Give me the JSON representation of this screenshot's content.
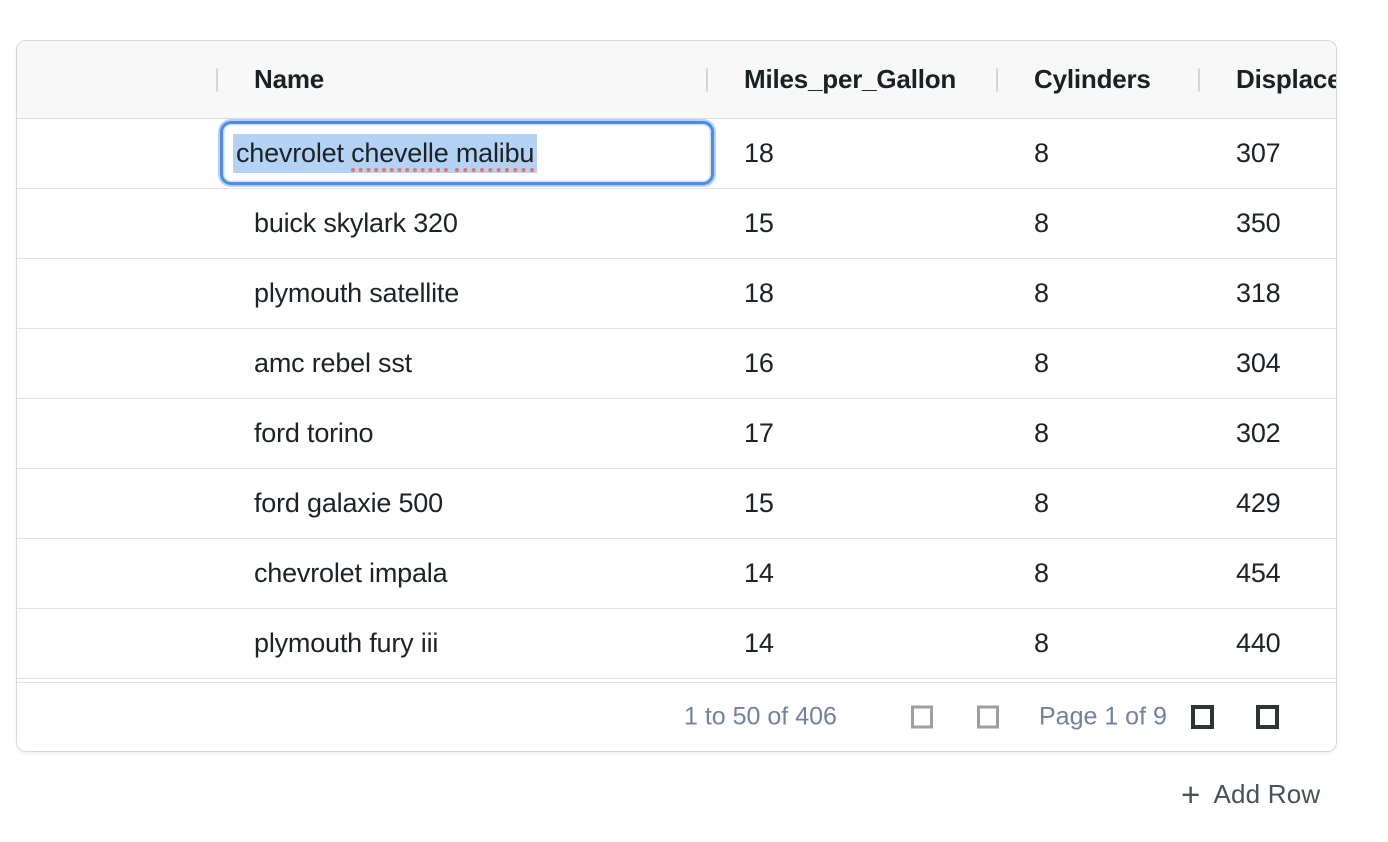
{
  "colors": {
    "accent_blue": "#4a8ceb",
    "focus_ring_blue": "#b9d1f5",
    "text_selection_blue": "#b3d2f4",
    "spellcheck_red": "#e8736c",
    "header_bg": "#f8f8f8",
    "row_border": "#e1e4e7",
    "cell_text": "#1d2226",
    "footer_text": "#73819e",
    "pager_icon_disabled": "#9d9fa1",
    "pager_icon_enabled": "#2e3338"
  },
  "grid": {
    "columns": [
      {
        "label": "Name"
      },
      {
        "label": "Miles_per_Gallon"
      },
      {
        "label": "Cylinders"
      },
      {
        "label": "Displacement"
      }
    ],
    "rows": [
      {
        "name": "chevrolet chevelle malibu",
        "miles_per_gallon": "18",
        "cylinders": "8",
        "displacement": "307"
      },
      {
        "name": "buick skylark 320",
        "miles_per_gallon": "15",
        "cylinders": "8",
        "displacement": "350"
      },
      {
        "name": "plymouth satellite",
        "miles_per_gallon": "18",
        "cylinders": "8",
        "displacement": "318"
      },
      {
        "name": "amc rebel sst",
        "miles_per_gallon": "16",
        "cylinders": "8",
        "displacement": "304"
      },
      {
        "name": "ford torino",
        "miles_per_gallon": "17",
        "cylinders": "8",
        "displacement": "302"
      },
      {
        "name": "ford galaxie 500",
        "miles_per_gallon": "15",
        "cylinders": "8",
        "displacement": "429"
      },
      {
        "name": "chevrolet impala",
        "miles_per_gallon": "14",
        "cylinders": "8",
        "displacement": "454"
      },
      {
        "name": "plymouth fury iii",
        "miles_per_gallon": "14",
        "cylinders": "8",
        "displacement": "440"
      }
    ],
    "editor": {
      "row_index": 0,
      "column": "Name",
      "value": "chevrolet chevelle malibu",
      "words": [
        "chevrolet",
        "chevelle",
        "malibu"
      ],
      "misspelled_words": [
        "chevelle",
        "malibu"
      ],
      "selection": "all-text-selected"
    },
    "footer": {
      "range_text": "1 to 50 of 406",
      "page_text": "Page 1 of 9",
      "icons": [
        "first-page-icon",
        "previous-page-icon",
        "next-page-icon",
        "last-page-icon"
      ]
    }
  },
  "add_row": {
    "icon": "+",
    "label": "Add Row"
  }
}
